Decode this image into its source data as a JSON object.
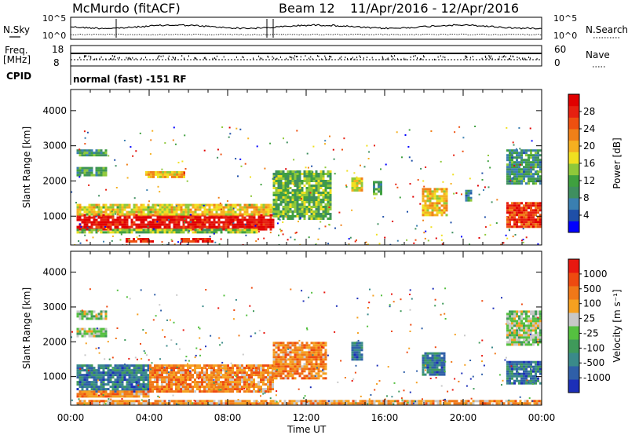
{
  "header": {
    "station": "McMurdo (fitACF)",
    "beam": "Beam 12",
    "date_range": "11/Apr/2016 - 12/Apr/2016",
    "cpid": "normal (fast) -151 RF"
  },
  "aux_labels": {
    "nsky": "N.Sky",
    "nsearch": "N.Search",
    "freq_top": "Freq.",
    "freq_unit": "[MHz]",
    "nave": "Nave",
    "cpid_label": "CPID",
    "noise_ticks_left": [
      "10^5",
      "10^0"
    ],
    "noise_ticks_right": [
      "10^5",
      "10^0"
    ],
    "freq_ticks": [
      "18",
      "8"
    ],
    "nave_ticks": [
      "60",
      "0"
    ]
  },
  "chart_data": [
    {
      "type": "heatmap",
      "name": "Power",
      "ylabel": "Slant Range [km]",
      "xlabel": "Time UT",
      "yticks": [
        1000,
        2000,
        3000,
        4000
      ],
      "ylim": [
        180,
        4600
      ],
      "xticks": [
        "00:00",
        "04:00",
        "08:00",
        "12:00",
        "16:00",
        "20:00",
        "00:00"
      ],
      "xlim_hours": [
        0,
        24
      ],
      "colorbar": {
        "label": "Power [dB]",
        "ticks": [
          "4",
          "8",
          "12",
          "16",
          "20",
          "24",
          "28"
        ],
        "colors": [
          "#0000ff",
          "#1f4fa8",
          "#3a7fb0",
          "#3f8f5f",
          "#3fa03f",
          "#8fc83a",
          "#f0e020",
          "#f5b020",
          "#f08018",
          "#ee5010",
          "#e62010",
          "#e00000"
        ]
      },
      "regions": [
        {
          "t0": 0.3,
          "t1": 10.3,
          "r0": 640,
          "r1": 1060,
          "level": 0.95
        },
        {
          "t0": 0.3,
          "t1": 10.3,
          "r0": 1060,
          "r1": 1350,
          "level": 0.55
        },
        {
          "t0": 0.3,
          "t1": 9.5,
          "r0": 540,
          "r1": 640,
          "level": 0.45
        },
        {
          "t0": 3.8,
          "t1": 5.8,
          "r0": 2120,
          "r1": 2280,
          "level": 0.6
        },
        {
          "t0": 0.3,
          "t1": 1.8,
          "r0": 2700,
          "r1": 2900,
          "level": 0.3
        },
        {
          "t0": 0.3,
          "t1": 1.8,
          "r0": 2180,
          "r1": 2400,
          "level": 0.35
        },
        {
          "t0": 10.3,
          "t1": 13.2,
          "r0": 950,
          "r1": 2300,
          "level": 0.4
        },
        {
          "t0": 14.3,
          "t1": 14.9,
          "r0": 1700,
          "r1": 2100,
          "level": 0.55
        },
        {
          "t0": 15.4,
          "t1": 15.8,
          "r0": 1600,
          "r1": 2000,
          "level": 0.35
        },
        {
          "t0": 17.9,
          "t1": 19.2,
          "r0": 1050,
          "r1": 1800,
          "level": 0.6
        },
        {
          "t0": 20.1,
          "t1": 20.4,
          "r0": 1450,
          "r1": 1750,
          "level": 0.3
        },
        {
          "t0": 22.2,
          "t1": 24,
          "r0": 700,
          "r1": 1400,
          "level": 0.85
        },
        {
          "t0": 22.2,
          "t1": 24,
          "r0": 1900,
          "r1": 2900,
          "level": 0.3
        },
        {
          "t0": 2.8,
          "t1": 4.2,
          "r0": 250,
          "r1": 380,
          "level": 0.9
        },
        {
          "t0": 5.6,
          "t1": 7.2,
          "r0": 250,
          "r1": 380,
          "level": 0.9
        }
      ]
    },
    {
      "type": "heatmap",
      "name": "Velocity",
      "ylabel": "Slant Range [km]",
      "xlabel": "Time UT",
      "yticks": [
        1000,
        2000,
        3000,
        4000
      ],
      "ylim": [
        180,
        4600
      ],
      "xticks": [
        "00:00",
        "04:00",
        "08:00",
        "12:00",
        "16:00",
        "20:00",
        "00:00"
      ],
      "xlim_hours": [
        0,
        24
      ],
      "colorbar": {
        "label": "Velocity [m s⁻¹]",
        "ticks": [
          "1000",
          "500",
          "100",
          "25",
          "-25",
          "-100",
          "-500",
          "-1000"
        ],
        "colors": [
          "#1c2fb8",
          "#2f5fa8",
          "#3a8a8a",
          "#3f9a5a",
          "#55c040",
          "#c8c8c8",
          "#f5a020",
          "#f07818",
          "#ee4a10",
          "#e81810"
        ]
      },
      "regions": [
        {
          "t0": 0.3,
          "t1": 4.0,
          "r0": 600,
          "r1": 1350,
          "level": 0.22
        },
        {
          "t0": 4.0,
          "t1": 10.3,
          "r0": 600,
          "r1": 1350,
          "level": 0.72
        },
        {
          "t0": 0.3,
          "t1": 4.0,
          "r0": 450,
          "r1": 600,
          "level": 0.72
        },
        {
          "t0": 10.3,
          "t1": 13.0,
          "r0": 950,
          "r1": 2000,
          "level": 0.72
        },
        {
          "t0": 0.3,
          "t1": 1.8,
          "r0": 2150,
          "r1": 2400,
          "level": 0.5
        },
        {
          "t0": 0.3,
          "t1": 1.8,
          "r0": 2650,
          "r1": 2900,
          "level": 0.5
        },
        {
          "t0": 14.3,
          "t1": 14.9,
          "r0": 1500,
          "r1": 2000,
          "level": 0.22
        },
        {
          "t0": 17.9,
          "t1": 19.1,
          "r0": 1050,
          "r1": 1700,
          "level": 0.22
        },
        {
          "t0": 22.2,
          "t1": 24,
          "r0": 800,
          "r1": 1450,
          "level": 0.22
        },
        {
          "t0": 22.2,
          "t1": 24,
          "r0": 1950,
          "r1": 2900,
          "level": 0.5
        },
        {
          "t0": 0.3,
          "t1": 24,
          "r0": 200,
          "r1": 330,
          "level": 0.68
        }
      ]
    }
  ]
}
